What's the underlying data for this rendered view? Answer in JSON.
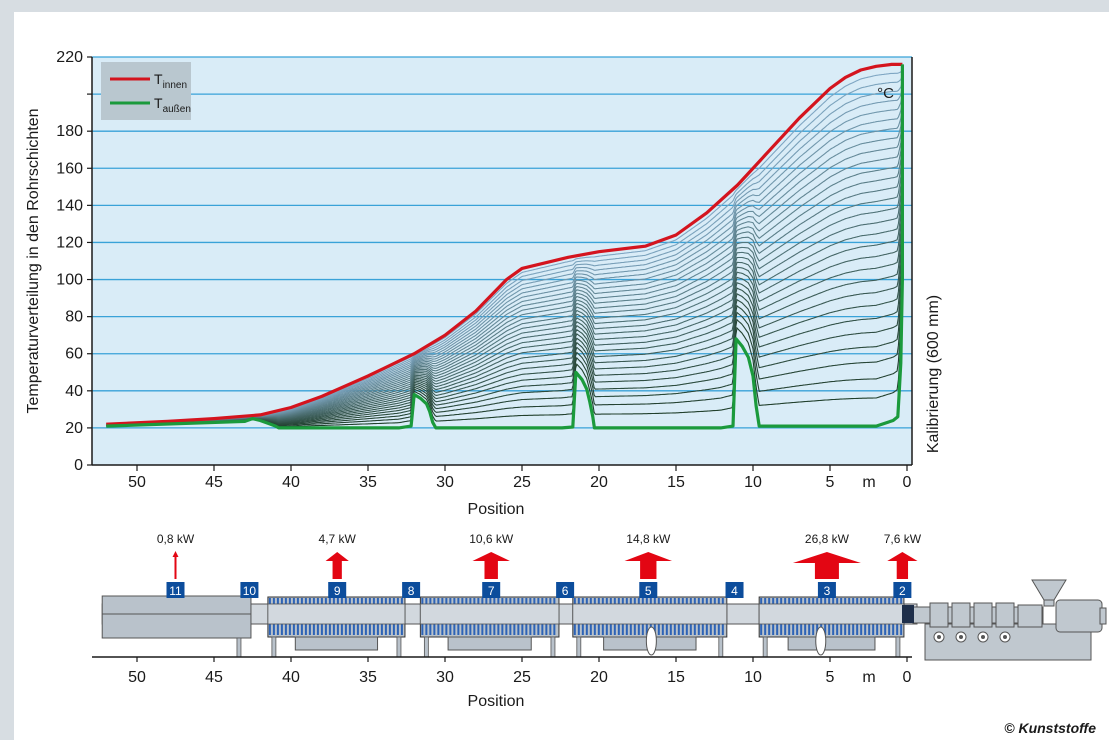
{
  "chart_data": {
    "type": "line",
    "ylabel": "Temperaturverteilung in den Rohrschichten",
    "yunit": "°C",
    "xlabel": "Position",
    "xunit": "m",
    "right_label": "Kalibrierung (600 mm)",
    "ylim": [
      0,
      220
    ],
    "xlim": [
      52,
      0
    ],
    "x_reversed": true,
    "y_ticks": [
      0,
      20,
      40,
      60,
      80,
      100,
      120,
      140,
      160,
      180,
      200,
      220
    ],
    "x_ticks": [
      50,
      45,
      40,
      35,
      30,
      25,
      20,
      15,
      10,
      5,
      0
    ],
    "grid": true,
    "legend_position": "top-left",
    "series": [
      {
        "name": "T",
        "subscript": "innen",
        "color": "#d4141e",
        "x": [
          52,
          48,
          45,
          42,
          40,
          38,
          35,
          32,
          30,
          28,
          26,
          25,
          22,
          20,
          17,
          15,
          13,
          11,
          9,
          7,
          5,
          4,
          3,
          2,
          1,
          0.3
        ],
        "y": [
          22,
          23.5,
          25,
          27,
          31,
          37,
          48,
          60,
          70,
          83,
          100,
          106,
          112,
          115,
          118,
          124,
          136,
          151,
          169,
          187,
          203,
          209,
          213,
          215,
          216,
          216
        ]
      },
      {
        "name": "T",
        "subscript": "außen",
        "color": "#1b9a3c",
        "x": [
          52,
          43,
          42.5,
          42,
          41.5,
          41,
          40.8,
          33,
          32.2,
          32,
          31.6,
          31.2,
          31,
          30.8,
          30.6,
          30.5,
          22.4,
          21.7,
          21.5,
          21.1,
          20.8,
          20.6,
          20.4,
          20.3,
          12.1,
          11.3,
          11.1,
          10.7,
          10.3,
          10,
          9.8,
          9.6,
          2,
          0.9,
          0.6,
          0.5,
          0.4,
          0.3,
          0.3
        ],
        "y": [
          21,
          23.5,
          25,
          24,
          22.5,
          21,
          20,
          20,
          21,
          38,
          36,
          33,
          29,
          23,
          20,
          20,
          20,
          20.5,
          50,
          46,
          41,
          34,
          26,
          20,
          20,
          21,
          68,
          64,
          58,
          48,
          32,
          21,
          21,
          24,
          26,
          40,
          55,
          100,
          216
        ]
      }
    ],
    "inner_layer_curves": 30
  },
  "legend": {
    "inner_label": "T",
    "inner_sub": "innen",
    "outer_label": "T",
    "outer_sub": "außen"
  },
  "machine": {
    "xlabel": "Position",
    "xunit": "m",
    "x_ticks": [
      50,
      45,
      40,
      35,
      30,
      25,
      20,
      15,
      10,
      5,
      0
    ],
    "zones": [
      {
        "id": "11",
        "x": 47.5,
        "power": "0,8 kW",
        "kw": 0.8
      },
      {
        "id": "10",
        "x": 42.7,
        "power": "",
        "kw": 0
      },
      {
        "id": "9",
        "x": 37,
        "power": "4,7 kW",
        "kw": 4.7
      },
      {
        "id": "8",
        "x": 32.2,
        "power": "",
        "kw": 0
      },
      {
        "id": "7",
        "x": 27,
        "power": "10,6 kW",
        "kw": 10.6
      },
      {
        "id": "6",
        "x": 22.2,
        "power": "",
        "kw": 0
      },
      {
        "id": "5",
        "x": 16.8,
        "power": "14,8 kW",
        "kw": 14.8
      },
      {
        "id": "4",
        "x": 11.2,
        "power": "",
        "kw": 0
      },
      {
        "id": "3",
        "x": 5.2,
        "power": "26,8 kW",
        "kw": 26.8
      },
      {
        "id": "2",
        "x": 0.3,
        "power": "7,6 kW",
        "kw": 7.6
      }
    ]
  },
  "copyright": "© Kunststoffe",
  "colors": {
    "background": "#ffffff",
    "frame": "#d7dde2",
    "plot_bg": "#d9ecf7",
    "grid": "#39a2d8",
    "axis": "#1a1a1a",
    "legend_bg": "#b9c7cf",
    "zone_box": "#0c4d9c",
    "heat_arrow": "#e30613",
    "bath": "#b9c2cb",
    "bath_hatch": "#2d63b6",
    "pipe": "#d2d8de",
    "extruder": "#c0c8cf"
  }
}
